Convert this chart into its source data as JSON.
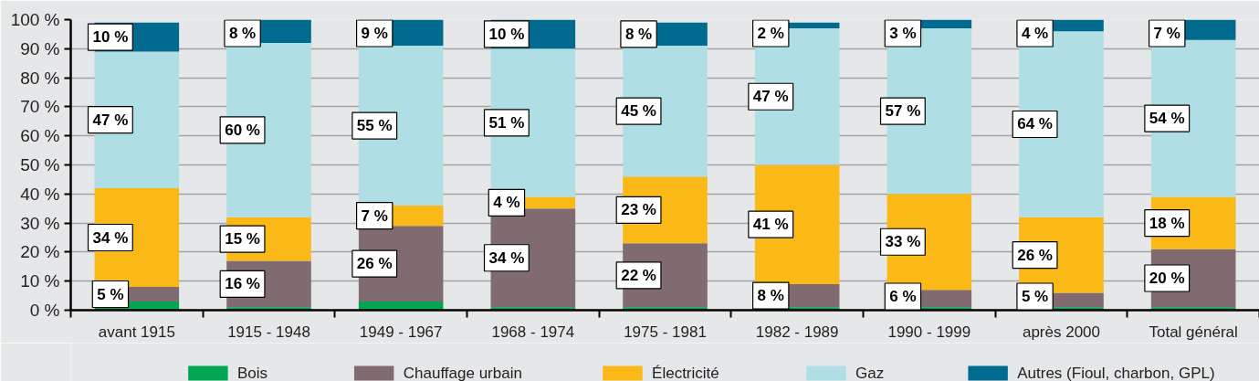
{
  "chart_data": {
    "type": "bar",
    "stacked": true,
    "categories": [
      "avant 1915",
      "1915 - 1948",
      "1949 - 1967",
      "1968 - 1974",
      "1975 - 1981",
      "1982 - 1989",
      "1990 - 1999",
      "après 2000",
      "Total général"
    ],
    "ylim": [
      0,
      100
    ],
    "yticks": [
      {
        "value": 0,
        "label": "0 %"
      },
      {
        "value": 10,
        "label": "10 %"
      },
      {
        "value": 20,
        "label": "20 %"
      },
      {
        "value": 30,
        "label": "30 %"
      },
      {
        "value": 40,
        "label": "40 %"
      },
      {
        "value": 50,
        "label": "50 %"
      },
      {
        "value": 60,
        "label": "60 %"
      },
      {
        "value": 70,
        "label": "70 %"
      },
      {
        "value": 80,
        "label": "80 %"
      },
      {
        "value": 90,
        "label": "90 %"
      },
      {
        "value": 100,
        "label": "100 %"
      }
    ],
    "grid": "y",
    "legend": "bottom",
    "series": [
      {
        "name": "Bois",
        "color": "#00a651",
        "values": [
          3,
          1,
          3,
          1,
          1,
          1,
          1,
          1,
          1
        ],
        "value_labels": [
          null,
          null,
          null,
          null,
          null,
          null,
          null,
          null,
          null
        ]
      },
      {
        "name": "Chauffage urbain",
        "color": "#7f6b70",
        "values": [
          5,
          16,
          26,
          34,
          22,
          8,
          6,
          5,
          20
        ],
        "value_labels": [
          "5 %",
          "16 %",
          "26 %",
          "34 %",
          "22 %",
          "8 %",
          "6 %",
          "5 %",
          "20 %"
        ]
      },
      {
        "name": "Électricité",
        "color": "#fbb917",
        "values": [
          34,
          15,
          7,
          4,
          23,
          41,
          33,
          26,
          18
        ],
        "value_labels": [
          "34 %",
          "15 %",
          "7 %",
          "4 %",
          "23 %",
          "41 %",
          "33 %",
          "26 %",
          "18 %"
        ]
      },
      {
        "name": "Gaz",
        "color": "#afdfe5",
        "values": [
          47,
          60,
          55,
          51,
          45,
          47,
          57,
          64,
          54
        ],
        "value_labels": [
          "47 %",
          "60 %",
          "55 %",
          "51 %",
          "45 %",
          "47 %",
          "57 %",
          "64 %",
          "54 %"
        ]
      },
      {
        "name": "Autres (Fioul, charbon, GPL)",
        "color": "#006b8f",
        "values": [
          10,
          8,
          9,
          10,
          8,
          2,
          3,
          4,
          7
        ],
        "value_labels": [
          "10 %",
          "8 %",
          "9 %",
          "10 %",
          "8 %",
          "2 %",
          "3 %",
          "4 %",
          "7 %"
        ]
      }
    ]
  }
}
